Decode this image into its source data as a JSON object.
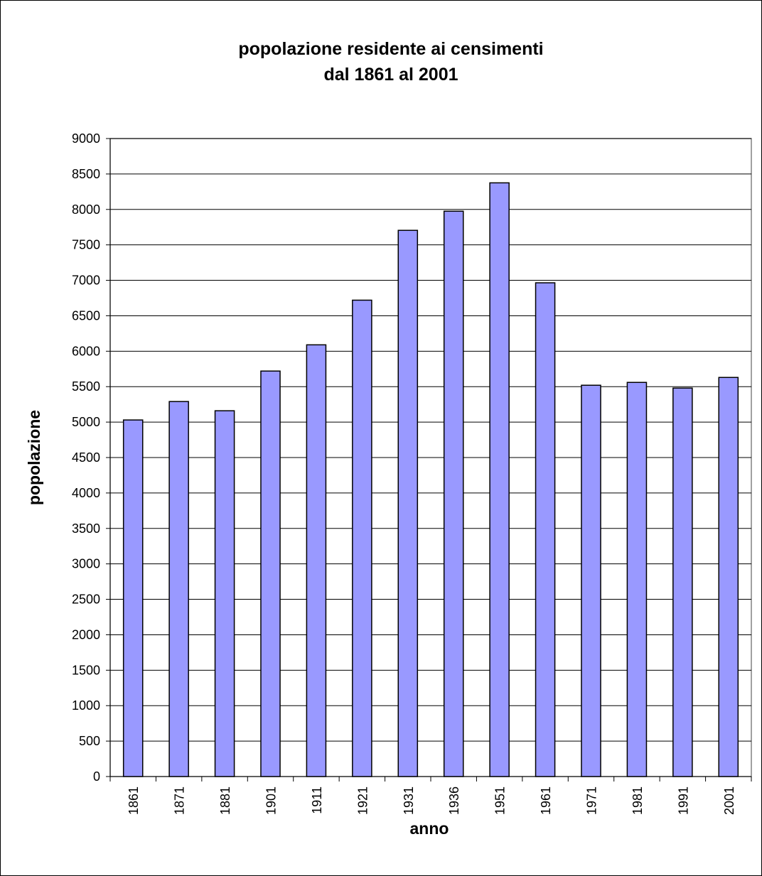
{
  "chart_data": {
    "type": "bar",
    "title": [
      "popolazione residente ai censimenti",
      "dal 1861 al 2001"
    ],
    "x_label": "anno",
    "y_label": "popolazione",
    "categories": [
      "1861",
      "1871",
      "1881",
      "1901",
      "1911",
      "1921",
      "1931",
      "1936",
      "1951",
      "1961",
      "1971",
      "1981",
      "1991",
      "2001"
    ],
    "values": [
      5030,
      5290,
      5160,
      5720,
      6090,
      6720,
      7705,
      7975,
      8375,
      6965,
      5520,
      5560,
      5480,
      5630
    ],
    "color": "#9999ff",
    "ylim": [
      0,
      9000
    ],
    "yticks": [
      0,
      500,
      1000,
      1500,
      2000,
      2500,
      3000,
      3500,
      4000,
      4500,
      5000,
      5500,
      6000,
      6500,
      7000,
      7500,
      8000,
      8500,
      9000
    ],
    "grid": true
  }
}
